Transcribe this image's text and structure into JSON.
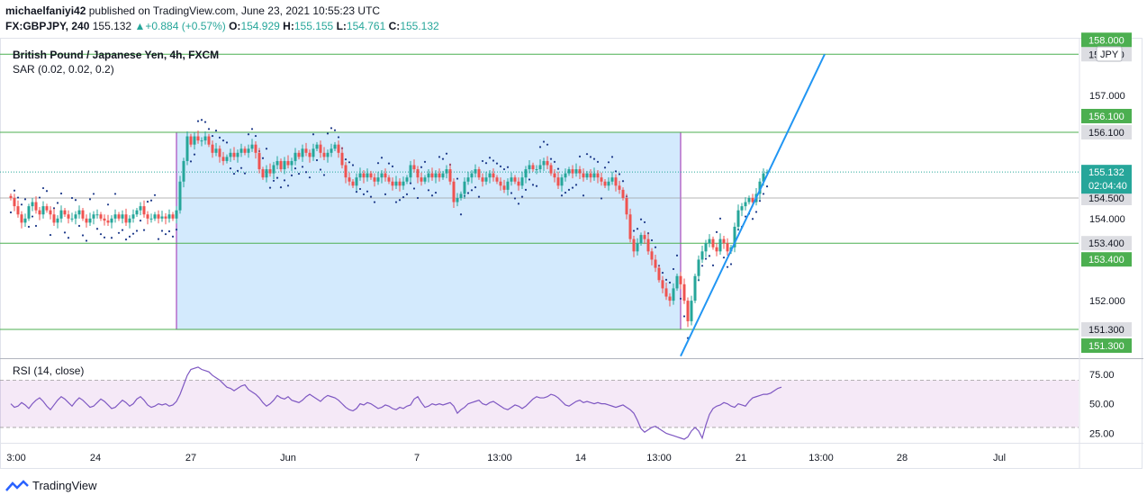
{
  "header": {
    "line1_user": "michaelfaniyi42",
    "line1_text": "published on TradingView.com, June 23, 2021 10:55:23 UTC",
    "symbol": "FX:GBPJPY, 240",
    "last": "155.132",
    "change": "+0.884 (+0.57%)",
    "o_label": "O:",
    "o_value": "154.929",
    "h_label": "H:",
    "h_value": "155.155",
    "l_label": "L:",
    "l_value": "154.761",
    "c_label": "C:",
    "c_value": "155.132"
  },
  "footer": {
    "brand": "TradingView"
  },
  "chart_data": {
    "type": "candlestick",
    "title": "British Pound / Japanese Yen, 4h, FXCM",
    "indicator_label": "SAR (0.02, 0.02, 0.2)",
    "currency": "JPY",
    "y_ticks": [
      "157.000",
      "154.000",
      "152.000"
    ],
    "ylim": [
      150.6,
      158.4
    ],
    "x_ticks": [
      "3:00",
      "24",
      "27",
      "Jun",
      "7",
      "13:00",
      "14",
      "13:00",
      "21",
      "13:00",
      "28",
      "Jul"
    ],
    "levels": [
      {
        "value": 158.0,
        "label": "158.000"
      },
      {
        "value": 156.1,
        "label": "156.100"
      },
      {
        "value": 153.4,
        "label": "153.400"
      },
      {
        "value": 151.3,
        "label": "151.300"
      }
    ],
    "grey_levels": [
      {
        "value": 154.5,
        "label": "154.500"
      }
    ],
    "price_label": {
      "value": 155.132,
      "label": "155.132",
      "countdown": "02:04:40"
    },
    "range_box": {
      "start_index": 46,
      "end_index": 186,
      "top": 156.1,
      "bottom": 151.3
    },
    "trendline": {
      "from": {
        "index": 186,
        "price": 150.65
      },
      "to": {
        "index": 226,
        "price": 158.0
      }
    },
    "closes": [
      154.5,
      154.3,
      154.1,
      153.9,
      154.0,
      154.3,
      154.4,
      154.2,
      154.1,
      154.3,
      154.2,
      154.1,
      153.9,
      154.0,
      154.2,
      154.1,
      154.0,
      154.0,
      154.1,
      154.2,
      154.0,
      153.9,
      154.0,
      154.1,
      154.1,
      154.0,
      153.95,
      153.9,
      154.0,
      154.1,
      154.0,
      154.1,
      153.9,
      154.0,
      154.1,
      154.2,
      154.3,
      154.1,
      154.0,
      154.0,
      154.1,
      154.0,
      154.05,
      154.0,
      154.1,
      154.0,
      154.2,
      154.9,
      155.4,
      156.0,
      155.8,
      156.0,
      155.9,
      155.9,
      156.0,
      155.8,
      155.6,
      155.7,
      155.5,
      155.4,
      155.5,
      155.6,
      155.5,
      155.6,
      155.7,
      155.6,
      155.7,
      155.8,
      155.6,
      155.2,
      155.0,
      155.2,
      155.1,
      155.3,
      155.4,
      155.2,
      155.4,
      155.3,
      155.4,
      155.6,
      155.5,
      155.7,
      155.6,
      155.5,
      155.7,
      155.8,
      155.6,
      155.5,
      155.6,
      155.7,
      155.8,
      155.6,
      155.3,
      155.0,
      154.9,
      154.8,
      155.0,
      155.1,
      155.0,
      155.1,
      155.0,
      154.9,
      155.0,
      155.1,
      155.0,
      154.9,
      154.8,
      154.9,
      154.8,
      154.9,
      155.0,
      155.3,
      155.2,
      155.0,
      154.9,
      155.0,
      155.1,
      155.0,
      155.1,
      155.0,
      155.1,
      155.2,
      154.9,
      154.4,
      154.5,
      154.6,
      154.9,
      155.0,
      155.1,
      155.2,
      155.0,
      154.9,
      155.0,
      155.1,
      155.0,
      154.9,
      154.8,
      154.7,
      154.9,
      155.0,
      154.9,
      154.8,
      155.0,
      155.2,
      155.3,
      155.2,
      155.2,
      155.3,
      155.4,
      155.3,
      155.1,
      155.0,
      154.8,
      155.0,
      155.1,
      155.2,
      155.1,
      155.2,
      155.1,
      155.0,
      155.1,
      155.0,
      155.1,
      155.0,
      154.9,
      154.8,
      154.9,
      155.0,
      154.8,
      154.7,
      154.5,
      154.1,
      153.5,
      153.2,
      153.4,
      153.6,
      153.5,
      153.2,
      153.0,
      152.8,
      152.5,
      152.3,
      152.1,
      152.0,
      152.3,
      152.6,
      152.4,
      152.0,
      151.5,
      152.0,
      152.6,
      153.0,
      153.2,
      153.4,
      153.5,
      153.3,
      153.2,
      153.5,
      153.4,
      153.2,
      153.3,
      153.8,
      154.2,
      154.3,
      154.4,
      154.5,
      154.4,
      154.6,
      154.9,
      155.1,
      155.132
    ],
    "rsi": {
      "label": "RSI (14, close)",
      "ticks": [
        "75.00",
        "50.00",
        "25.00"
      ],
      "ylim": [
        17,
        87
      ],
      "band": [
        30,
        70
      ],
      "values": [
        50,
        47,
        48,
        51,
        49,
        46,
        50,
        53,
        55,
        52,
        48,
        45,
        49,
        53,
        56,
        54,
        51,
        48,
        52,
        55,
        53,
        50,
        47,
        48,
        51,
        54,
        52,
        49,
        46,
        47,
        50,
        53,
        51,
        48,
        50,
        54,
        56,
        53,
        49,
        47,
        48,
        50,
        49,
        50,
        48,
        49,
        52,
        58,
        66,
        74,
        79,
        80,
        81,
        79,
        78,
        77,
        74,
        72,
        70,
        67,
        64,
        63,
        61,
        63,
        65,
        66,
        62,
        60,
        58,
        55,
        51,
        48,
        50,
        53,
        57,
        55,
        54,
        56,
        53,
        52,
        51,
        53,
        56,
        58,
        56,
        54,
        52,
        55,
        57,
        56,
        55,
        53,
        50,
        47,
        45,
        44,
        46,
        50,
        49,
        51,
        50,
        48,
        46,
        47,
        49,
        48,
        46,
        45,
        47,
        46,
        48,
        49,
        54,
        56,
        51,
        47,
        48,
        50,
        49,
        50,
        49,
        50,
        51,
        48,
        42,
        45,
        47,
        50,
        51,
        52,
        53,
        50,
        49,
        51,
        52,
        50,
        48,
        46,
        45,
        47,
        49,
        48,
        46,
        48,
        51,
        54,
        56,
        55,
        55,
        56,
        58,
        57,
        55,
        52,
        49,
        48,
        50,
        52,
        53,
        51,
        52,
        51,
        50,
        51,
        50,
        50,
        49,
        48,
        47,
        48,
        49,
        47,
        45,
        42,
        36,
        29,
        26,
        28,
        30,
        31,
        29,
        27,
        25,
        24,
        23,
        22,
        21,
        20,
        22,
        27,
        30,
        27,
        21,
        32,
        41,
        46,
        48,
        49,
        51,
        50,
        48,
        47,
        50,
        49,
        48,
        52,
        55,
        56,
        57,
        58,
        58,
        59,
        61,
        63,
        64
      ]
    }
  }
}
